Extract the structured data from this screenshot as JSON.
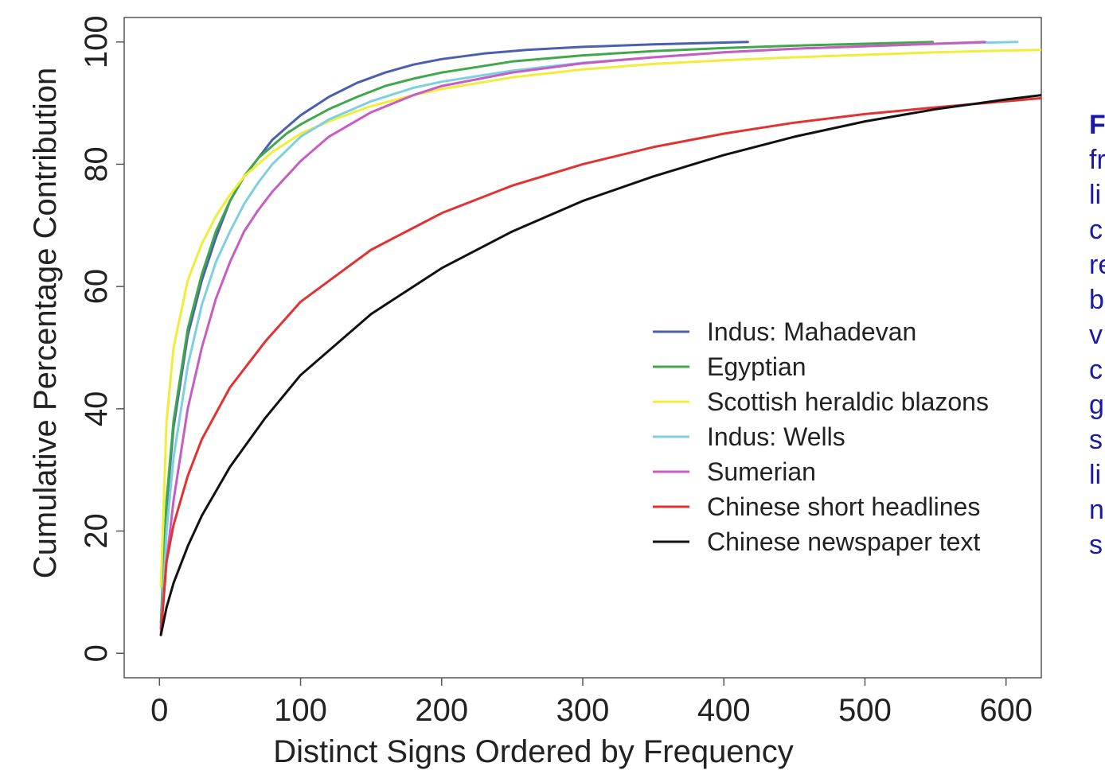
{
  "chart_data": {
    "type": "line",
    "title": "",
    "xlabel": "Distinct Signs Ordered by Frequency",
    "ylabel": "Cumulative Percentage Contribution",
    "xlim": [
      -25,
      625
    ],
    "ylim": [
      -4,
      104
    ],
    "x_ticks": [
      0,
      100,
      200,
      300,
      400,
      500,
      600
    ],
    "y_ticks": [
      0,
      20,
      40,
      60,
      80,
      100
    ],
    "grid": false,
    "legend_position": "center-right",
    "series": [
      {
        "name": "Indus: Mahadevan",
        "color": "#4a5fb0",
        "x": [
          1,
          5,
          10,
          20,
          30,
          40,
          50,
          60,
          70,
          80,
          90,
          100,
          120,
          140,
          160,
          180,
          200,
          230,
          260,
          300,
          350,
          417
        ],
        "y": [
          4,
          24,
          37,
          52,
          61,
          68,
          74,
          78,
          81,
          84,
          86,
          88,
          91,
          93.3,
          95,
          96.3,
          97.2,
          98.1,
          98.7,
          99.2,
          99.6,
          100
        ]
      },
      {
        "name": "Egyptian",
        "color": "#3fa84a",
        "x": [
          1,
          5,
          10,
          20,
          30,
          40,
          50,
          60,
          70,
          80,
          90,
          100,
          120,
          140,
          160,
          180,
          200,
          250,
          300,
          350,
          400,
          450,
          500,
          548
        ],
        "y": [
          5,
          25,
          38,
          53,
          62,
          69,
          74,
          78,
          81,
          83,
          85,
          86.5,
          89,
          91,
          92.8,
          94,
          95,
          96.8,
          97.8,
          98.5,
          99,
          99.4,
          99.7,
          100
        ]
      },
      {
        "name": "Scottish heraldic blazons",
        "color": "#f2ec3a",
        "x": [
          1,
          5,
          10,
          20,
          30,
          40,
          50,
          60,
          70,
          80,
          100,
          120,
          150,
          180,
          200,
          250,
          300,
          350,
          400,
          450,
          500,
          550,
          600,
          625
        ],
        "y": [
          11,
          38,
          50,
          61,
          67,
          71.5,
          75,
          78,
          80,
          82,
          85,
          87,
          89.5,
          91.3,
          92.3,
          94.2,
          95.5,
          96.4,
          97,
          97.5,
          97.9,
          98.3,
          98.6,
          98.7
        ]
      },
      {
        "name": "Indus: Wells",
        "color": "#7ecfe0",
        "x": [
          1,
          5,
          10,
          20,
          30,
          40,
          50,
          60,
          70,
          80,
          100,
          120,
          150,
          180,
          200,
          250,
          300,
          350,
          400,
          450,
          500,
          550,
          608
        ],
        "y": [
          3,
          20,
          32,
          47,
          57,
          64,
          69,
          73.5,
          77,
          80,
          84.5,
          87.3,
          90.3,
          92.5,
          93.5,
          95.3,
          96.6,
          97.5,
          98.3,
          98.9,
          99.3,
          99.7,
          100
        ]
      },
      {
        "name": "Sumerian",
        "color": "#c85cc0",
        "x": [
          1,
          5,
          10,
          20,
          30,
          40,
          50,
          60,
          70,
          80,
          100,
          120,
          150,
          180,
          200,
          250,
          300,
          350,
          400,
          450,
          500,
          550,
          585
        ],
        "y": [
          4,
          15,
          25,
          40,
          50,
          58,
          64,
          69,
          72.5,
          75.5,
          80.5,
          84.5,
          88.5,
          91.3,
          92.8,
          95,
          96.5,
          97.5,
          98.3,
          98.9,
          99.3,
          99.7,
          100
        ]
      },
      {
        "name": "Chinese short headlines",
        "color": "#e23232",
        "x": [
          1,
          5,
          10,
          20,
          30,
          50,
          75,
          100,
          150,
          200,
          250,
          300,
          350,
          400,
          450,
          500,
          550,
          600,
          625
        ],
        "y": [
          3,
          15,
          21,
          29,
          35,
          43.5,
          51,
          57.5,
          66,
          72,
          76.5,
          80,
          82.8,
          85,
          86.8,
          88.2,
          89.3,
          90.3,
          90.8
        ]
      },
      {
        "name": "Chinese newspaper text",
        "color": "#111111",
        "x": [
          1,
          5,
          10,
          20,
          30,
          50,
          75,
          100,
          150,
          200,
          250,
          300,
          350,
          400,
          450,
          500,
          550,
          600,
          625
        ],
        "y": [
          3,
          7.5,
          11.5,
          17.5,
          22.5,
          30.5,
          38.5,
          45.5,
          55.5,
          63,
          69,
          74,
          78,
          81.5,
          84.5,
          87,
          89,
          90.6,
          91.3
        ]
      }
    ]
  },
  "caption_fragment": {
    "bold_letter": "F",
    "lines": [
      "fr",
      "li",
      "c",
      "re",
      "b",
      "v",
      "c",
      "g",
      "s",
      "li",
      "n",
      "s"
    ]
  }
}
